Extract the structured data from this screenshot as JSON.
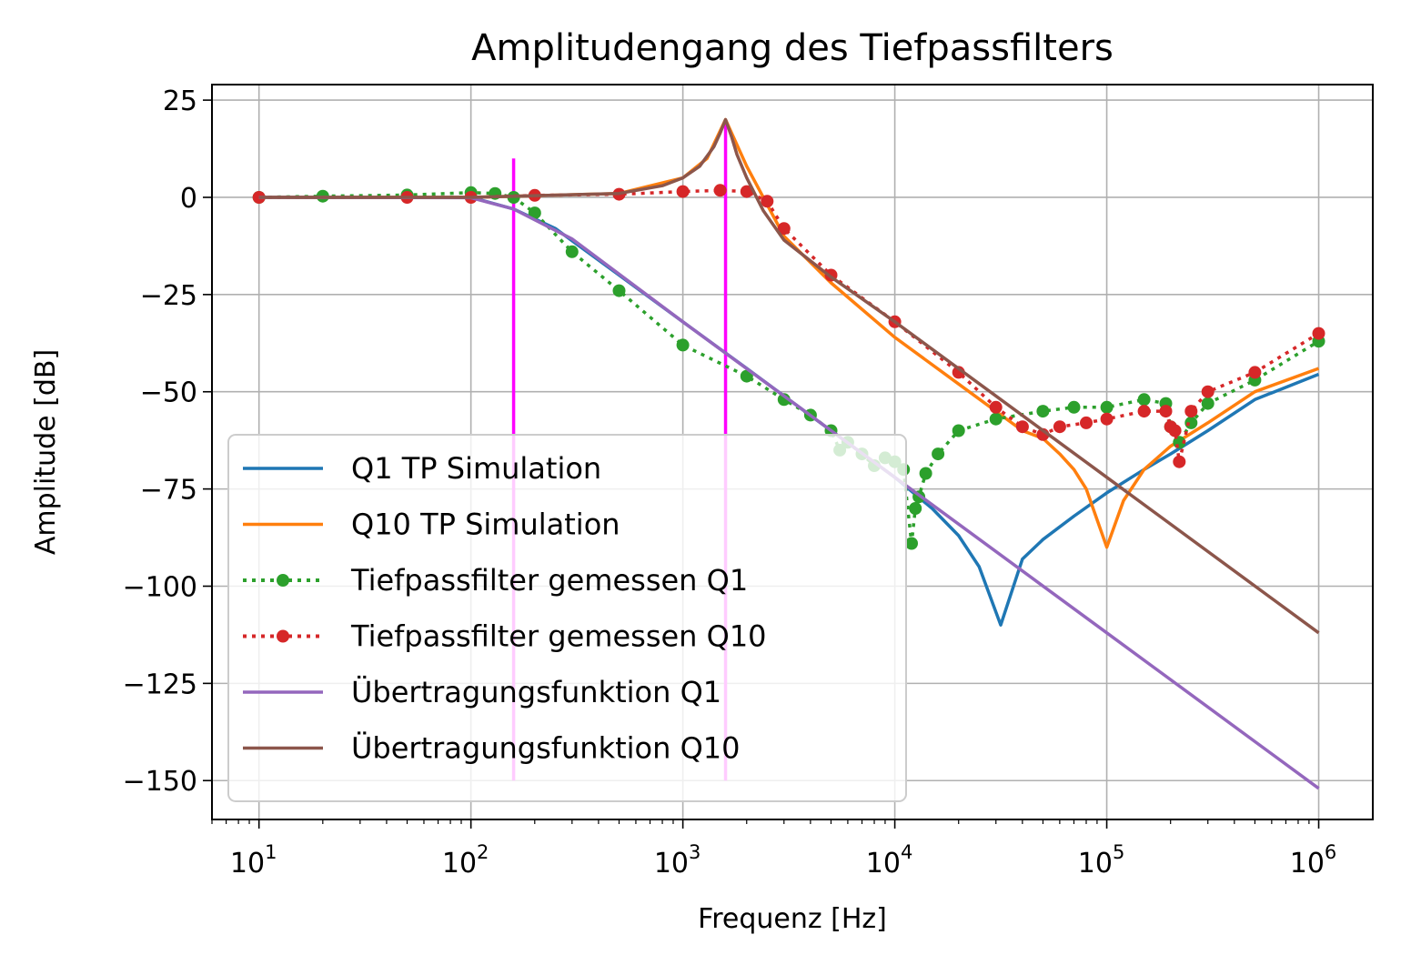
{
  "chart_data": {
    "type": "line",
    "title": "Amplitudengang des Tiefpassfilters",
    "xlabel": "Frequenz [Hz]",
    "ylabel": "Amplitude [dB]",
    "xscale": "log",
    "xlim": [
      6,
      1800000
    ],
    "ylim": [
      -160,
      29
    ],
    "grid": true,
    "legend_position": "lower-left",
    "x_ticks": [
      {
        "value": 10,
        "base": "10",
        "exp": "1"
      },
      {
        "value": 100,
        "base": "10",
        "exp": "2"
      },
      {
        "value": 1000,
        "base": "10",
        "exp": "3"
      },
      {
        "value": 10000,
        "base": "10",
        "exp": "4"
      },
      {
        "value": 100000,
        "base": "10",
        "exp": "5"
      },
      {
        "value": 1000000,
        "base": "10",
        "exp": "6"
      }
    ],
    "y_ticks": [
      {
        "value": 25,
        "label": "25"
      },
      {
        "value": 0,
        "label": "0"
      },
      {
        "value": -25,
        "label": "−25"
      },
      {
        "value": -50,
        "label": "−50"
      },
      {
        "value": -75,
        "label": "−75"
      },
      {
        "value": -100,
        "label": "−100"
      },
      {
        "value": -125,
        "label": "−125"
      },
      {
        "value": -150,
        "label": "−150"
      }
    ],
    "series": [
      {
        "name": "Q1 TP Simulation",
        "style": "line",
        "color": "#1f77b4",
        "x": [
          10,
          100,
          159,
          250,
          500,
          1000,
          2000,
          5000,
          10000,
          15000,
          20000,
          25000,
          31600,
          40000,
          50000,
          70000,
          100000,
          150000,
          200000,
          300000,
          500000,
          1000000
        ],
        "y": [
          0,
          0,
          -3,
          -8,
          -20,
          -32,
          -44,
          -60,
          -72,
          -80,
          -87,
          -95,
          -110,
          -93,
          -88,
          -82,
          -76,
          -70,
          -66,
          -60,
          -52,
          -45.5
        ]
      },
      {
        "name": "Q10 TP Simulation",
        "style": "line",
        "color": "#ff7f0e",
        "x": [
          10,
          100,
          500,
          1000,
          1300,
          1590,
          2000,
          3000,
          5000,
          10000,
          20000,
          40000,
          50000,
          60000,
          70000,
          80000,
          100000,
          120000,
          150000,
          200000,
          300000,
          500000,
          1000000
        ],
        "y": [
          0,
          0,
          1,
          5,
          10,
          20,
          8,
          -10,
          -22,
          -36,
          -48,
          -60,
          -62,
          -66,
          -70,
          -75,
          -90,
          -78,
          -70,
          -64,
          -58,
          -50,
          -44
        ]
      },
      {
        "name": "Tiefpassfilter gemessen Q1",
        "style": "dotted-marker",
        "color": "#2ca02c",
        "x": [
          10,
          20,
          50,
          100,
          130,
          159,
          200,
          300,
          500,
          1000,
          2000,
          3000,
          4000,
          5000,
          5500,
          6000,
          7000,
          8000,
          9000,
          10000,
          11000,
          12000,
          12500,
          13000,
          14000,
          16000,
          20000,
          30000,
          50000,
          70000,
          100000,
          150000,
          190000,
          200000,
          220000,
          250000,
          300000,
          500000,
          1000000
        ],
        "y": [
          0,
          0.3,
          0.6,
          1.2,
          1,
          0,
          -4,
          -14,
          -24,
          -38,
          -46,
          -52,
          -56,
          -60,
          -65,
          -63,
          -66,
          -69,
          -67,
          -68,
          -70,
          -89,
          -80,
          -77,
          -71,
          -66,
          -60,
          -57,
          -55,
          -54,
          -54,
          -52,
          -53,
          -59,
          -63,
          -58,
          -53,
          -47,
          -37
        ]
      },
      {
        "name": "Tiefpassfilter gemessen Q10",
        "style": "dotted-marker",
        "color": "#d62728",
        "x": [
          10,
          50,
          100,
          200,
          500,
          1000,
          1500,
          2000,
          2500,
          3000,
          5000,
          10000,
          20000,
          30000,
          40000,
          50000,
          60000,
          80000,
          100000,
          150000,
          190000,
          200000,
          210000,
          220000,
          250000,
          300000,
          500000,
          1000000
        ],
        "y": [
          0,
          0,
          0,
          0.5,
          0.8,
          1.5,
          1.8,
          1.5,
          -1,
          -8,
          -20,
          -32,
          -45,
          -54,
          -59,
          -61,
          -59,
          -58,
          -57,
          -55,
          -55,
          -59,
          -60,
          -68,
          -55,
          -50,
          -45,
          -35
        ]
      },
      {
        "name": "Übertragungsfunktion Q1",
        "style": "line",
        "color": "#9467bd",
        "x": [
          10,
          100,
          159,
          300,
          1000,
          10000,
          100000,
          1000000
        ],
        "y": [
          0,
          -0.1,
          -3,
          -10.7,
          -32,
          -72,
          -112,
          -152
        ]
      },
      {
        "name": "Übertragungsfunktion Q10",
        "style": "line",
        "color": "#8c564b",
        "x": [
          10,
          100,
          500,
          800,
          1000,
          1200,
          1400,
          1500,
          1590,
          1700,
          1800,
          2000,
          2400,
          3000,
          5000,
          10000,
          100000,
          1000000
        ],
        "y": [
          0,
          0,
          1,
          3,
          5,
          8,
          13,
          16.5,
          20,
          15.5,
          11,
          5,
          -3.5,
          -11,
          -20.5,
          -32,
          -72,
          -112
        ]
      }
    ],
    "vertical_markers": [
      {
        "x": 159,
        "y_range": [
          -150,
          10
        ],
        "color": "#ff00ff"
      },
      {
        "x": 1590,
        "y_range": [
          -150,
          20
        ],
        "color": "#ff00ff"
      }
    ]
  }
}
